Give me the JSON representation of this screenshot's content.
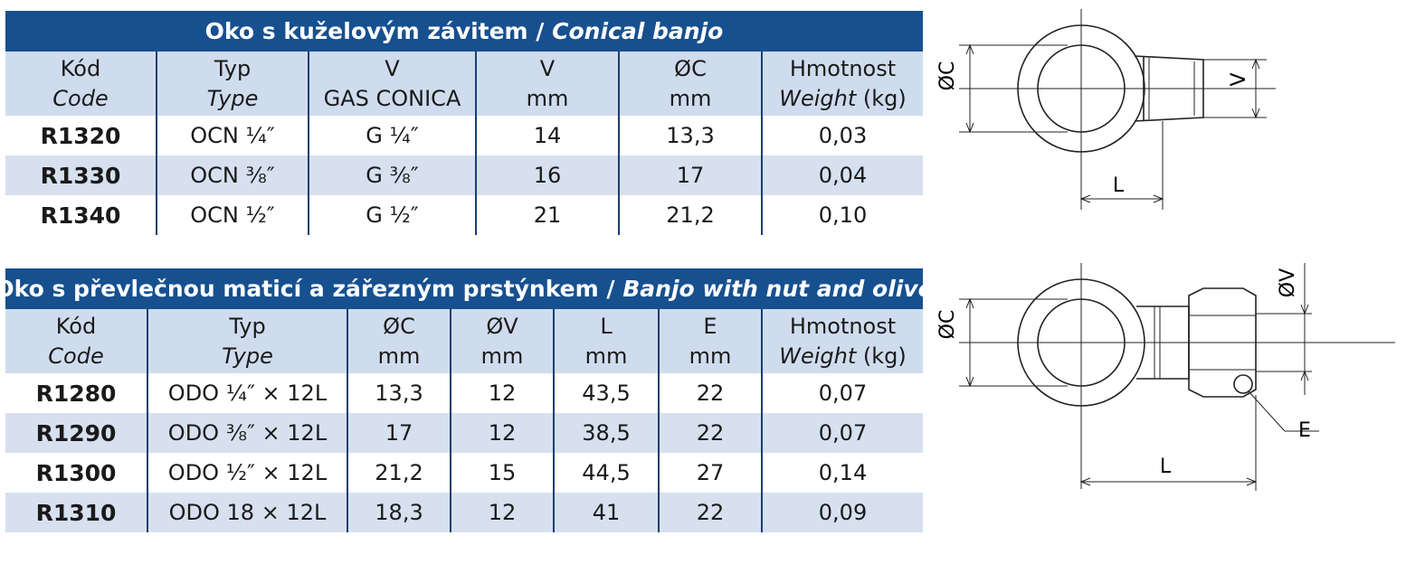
{
  "table1": {
    "title_cz": "Oko s kuželovým závitem /",
    "title_en": "Conical banjo",
    "headers": [
      {
        "l1": "Kód",
        "l2": "Code",
        "i2": true
      },
      {
        "l1": "Typ",
        "l2": "Type",
        "i2": true
      },
      {
        "l1": "V",
        "l2": "GAS CONICA",
        "i2": false
      },
      {
        "l1": "V",
        "l2": "mm",
        "i2": false
      },
      {
        "l1": "ØC",
        "l2": "mm",
        "i2": false
      },
      {
        "l1": "Hmotnost",
        "l2a": "Weight",
        "l2b": " (kg)"
      }
    ],
    "rows": [
      [
        "R1320",
        "OCN ¼″",
        "G ¼″",
        "14",
        "13,3",
        "0,03"
      ],
      [
        "R1330",
        "OCN ⅜″",
        "G ⅜″",
        "16",
        "17",
        "0,04"
      ],
      [
        "R1340",
        "OCN ½″",
        "G ½″",
        "21",
        "21,2",
        "0,10"
      ]
    ]
  },
  "table2": {
    "title_cz": "Oko s převlečnou maticí a zářezným prstýnkem /",
    "title_en": "Banjo with nut and olive",
    "headers": [
      {
        "l1": "Kód",
        "l2": "Code",
        "i2": true
      },
      {
        "l1": "Typ",
        "l2": "Type",
        "i2": true
      },
      {
        "l1": "ØC",
        "l2": "mm",
        "i2": false
      },
      {
        "l1": "ØV",
        "l2": "mm",
        "i2": false
      },
      {
        "l1": "L",
        "l2": "mm",
        "i2": false
      },
      {
        "l1": "E",
        "l2": "mm",
        "i2": false
      },
      {
        "l1": "Hmotnost",
        "l2a": "Weight",
        "l2b": " (kg)"
      }
    ],
    "rows": [
      [
        "R1280",
        "ODO ¼″ × 12L",
        "13,3",
        "12",
        "43,5",
        "22",
        "0,07"
      ],
      [
        "R1290",
        "ODO ⅜″ × 12L",
        "17",
        "12",
        "38,5",
        "22",
        "0,07"
      ],
      [
        "R1300",
        "ODO ½″ × 12L",
        "21,2",
        "15",
        "44,5",
        "27",
        "0,14"
      ],
      [
        "R1310",
        "ODO 18 × 12L",
        "18,3",
        "12",
        "41",
        "22",
        "0,09"
      ]
    ]
  },
  "drawing1": {
    "oc": "ØC",
    "v": "V",
    "l": "L"
  },
  "drawing2": {
    "oc": "ØC",
    "ov": "ØV",
    "e": "E",
    "l": "L"
  },
  "colors": {
    "header_bg": "#17508f",
    "row_alt": "#d6e0ef",
    "subheader_bg": "#cfdcee",
    "divider": "#173f72"
  }
}
